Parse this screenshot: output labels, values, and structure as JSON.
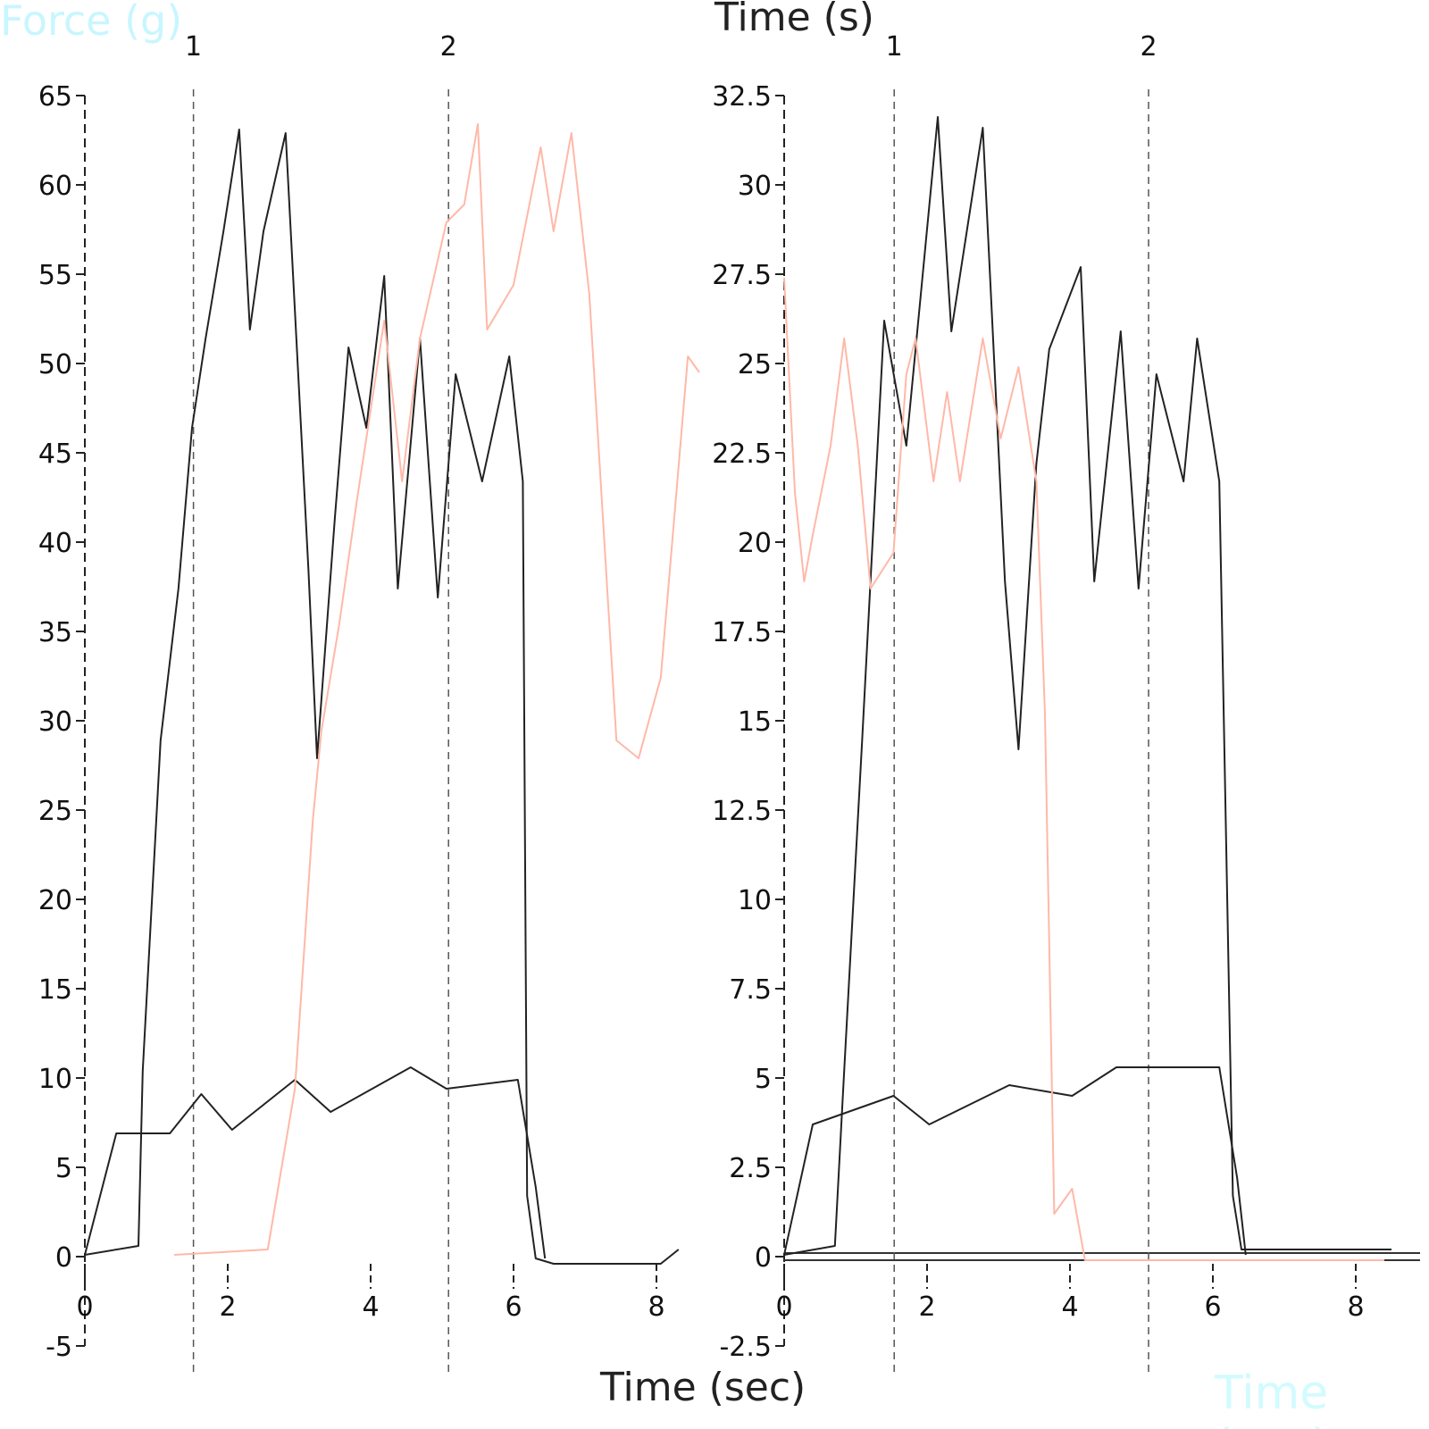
{
  "chart_data": [
    {
      "type": "line",
      "ylabel": "Force (g)",
      "xlabel": "Time (sec)",
      "xlim": [
        0,
        8.6
      ],
      "ylim": [
        -5,
        65
      ],
      "xticks": [
        0,
        2,
        4,
        6,
        8
      ],
      "yticks": [
        -5,
        0,
        5,
        10,
        15,
        20,
        25,
        30,
        35,
        40,
        45,
        50,
        55,
        60,
        65
      ],
      "grid": false,
      "markers": [
        {
          "label": "1",
          "x": 1.52
        },
        {
          "label": "2",
          "x": 5.09
        }
      ],
      "colors": {
        "series_dark": "#222222",
        "series_pink": "#ffb8a8",
        "marker_line": "#555555"
      },
      "series": [
        {
          "color": "#222222",
          "x": [
            0,
            0.75,
            0.81,
            1.06,
            1.31,
            1.5,
            1.69,
            1.94,
            2.16,
            2.31,
            2.5,
            2.81,
            3.13,
            3.25,
            3.5,
            3.69,
            3.94,
            4.19,
            4.38,
            4.69,
            4.94,
            5.19,
            5.56,
            5.94,
            6.13,
            6.19,
            6.31,
            6.56,
            8.06,
            8.31
          ],
          "y": [
            0.1,
            0.6,
            10.4,
            28.9,
            37.4,
            46.4,
            51.4,
            57.4,
            63.1,
            51.9,
            57.4,
            62.9,
            38.4,
            27.9,
            41.4,
            50.9,
            46.4,
            54.9,
            37.4,
            51.4,
            36.9,
            49.4,
            43.4,
            50.4,
            43.4,
            3.4,
            -0.1,
            -0.4,
            -0.4,
            0.4
          ]
        },
        {
          "color": "#222222",
          "x": [
            0,
            0.44,
            1.19,
            1.63,
            2.06,
            2.94,
            3.44,
            4.56,
            5.06,
            6.06,
            6.31,
            6.44
          ],
          "y": [
            0.1,
            6.9,
            6.9,
            9.1,
            7.1,
            9.9,
            8.1,
            10.6,
            9.4,
            9.9,
            3.9,
            -0.1
          ]
        },
        {
          "color": "#ffb8a8",
          "x": [
            1.25,
            2.56,
            2.94,
            3.19,
            3.31,
            3.56,
            3.81,
            4.19,
            4.44,
            4.69,
            5.06,
            5.31,
            5.5,
            5.63,
            6.0,
            6.38,
            6.56,
            6.81,
            7.06,
            7.44,
            7.75,
            8.06,
            8.44,
            8.6
          ],
          "y": [
            0.1,
            0.4,
            9.4,
            24.4,
            29.4,
            35.4,
            42.4,
            52.4,
            43.4,
            51.4,
            57.9,
            58.9,
            63.4,
            51.9,
            54.4,
            62.1,
            57.4,
            62.9,
            53.9,
            28.9,
            27.9,
            32.4,
            50.4,
            49.5
          ]
        }
      ]
    },
    {
      "type": "line",
      "ylabel": "Time (s)",
      "xlabel": "Time (sec)",
      "xlim": [
        0,
        8.6
      ],
      "ylim": [
        -2.5,
        32.5
      ],
      "xticks": [
        0,
        2,
        4,
        6,
        8
      ],
      "yticks": [
        -2.5,
        0,
        2.5,
        5,
        7.5,
        10,
        12.5,
        15,
        17.5,
        20,
        22.5,
        25,
        27.5,
        30,
        32.5
      ],
      "grid": false,
      "markers": [
        {
          "label": "1",
          "x": 1.54
        },
        {
          "label": "2",
          "x": 5.1
        }
      ],
      "colors": {
        "series_dark": "#222222",
        "series_pink": "#ffb8a8",
        "series_red": "#cc2222"
      },
      "series": [
        {
          "color": "#222222",
          "x": [
            0,
            0.71,
            0.84,
            1.09,
            1.4,
            1.71,
            2.15,
            2.34,
            2.78,
            3.09,
            3.28,
            3.53,
            3.71,
            4.15,
            4.34,
            4.71,
            4.96,
            5.21,
            5.59,
            5.78,
            6.09,
            6.28,
            6.4,
            8.5
          ],
          "y": [
            0.05,
            0.3,
            5.2,
            14.4,
            26.2,
            22.7,
            31.9,
            25.9,
            31.6,
            18.9,
            14.2,
            22.2,
            25.4,
            27.7,
            18.9,
            25.9,
            18.7,
            24.7,
            21.7,
            25.7,
            21.7,
            1.7,
            0.2,
            0.2
          ]
        },
        {
          "color": "#222222",
          "x": [
            0,
            0.4,
            1.53,
            2.03,
            3.15,
            4.03,
            4.65,
            6.09,
            6.34,
            6.46
          ],
          "y": [
            0.05,
            3.7,
            4.5,
            3.7,
            4.8,
            4.5,
            5.3,
            5.3,
            2.2,
            0.05
          ]
        },
        {
          "color": "#ffb8a8",
          "x": [
            0,
            0.15,
            0.28,
            0.4,
            0.65,
            0.84,
            1.03,
            1.21,
            1.53,
            1.71,
            1.84,
            2.09,
            2.28,
            2.46,
            2.78,
            3.03,
            3.28,
            3.53,
            3.65,
            3.78,
            4.03,
            4.21,
            8.4
          ],
          "y": [
            27.4,
            21.4,
            18.9,
            20.2,
            22.7,
            25.7,
            22.7,
            18.7,
            19.7,
            24.7,
            25.7,
            21.7,
            24.2,
            21.7,
            25.7,
            22.9,
            24.9,
            21.7,
            15.2,
            1.2,
            1.9,
            -0.1,
            -0.1
          ]
        }
      ]
    }
  ]
}
